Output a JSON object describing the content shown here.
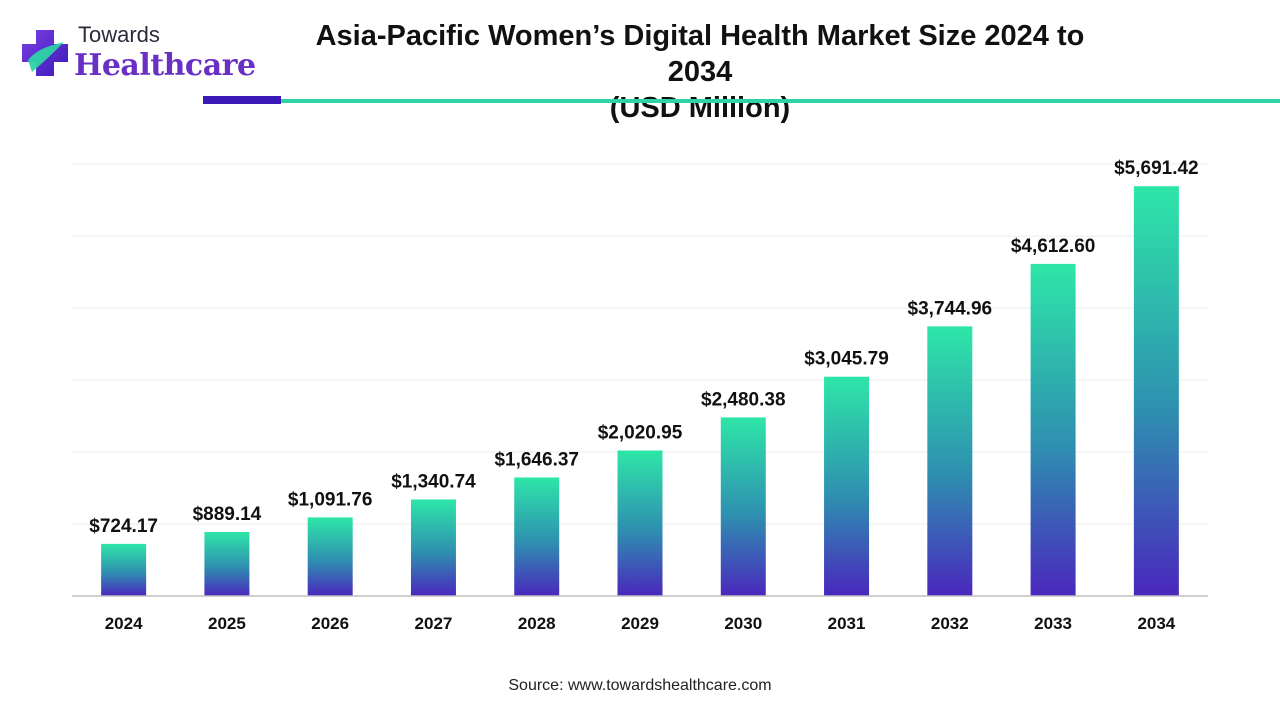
{
  "brand": {
    "line1": "Towards",
    "line2": "Healthcare"
  },
  "title_line1": "Asia-Pacific Women’s Digital Health Market Size 2024 to 2034",
  "title_line2": "(USD Million)",
  "source": "Source: www.towardshealthcare.com",
  "colors": {
    "bar_top": "#2ee6a8",
    "bar_mid": "#2e8fb0",
    "bar_bottom": "#4a27bd",
    "rule_dark": "#3a1bb7",
    "rule_teal": "#2ed3a6",
    "logo_purple": "#6a2fc4"
  },
  "chart_data": {
    "type": "bar",
    "categories": [
      "2024",
      "2025",
      "2026",
      "2027",
      "2028",
      "2029",
      "2030",
      "2031",
      "2032",
      "2033",
      "2034"
    ],
    "values": [
      724.17,
      889.14,
      1091.76,
      1340.74,
      1646.37,
      2020.95,
      2480.38,
      3045.79,
      3744.96,
      4612.6,
      5691.42
    ],
    "labels": [
      "$724.17",
      "$889.14",
      "$1,091.76",
      "$1,340.74",
      "$1,646.37",
      "$2,020.95",
      "$2,480.38",
      "$3,045.79",
      "$3,744.96",
      "$4,612.60",
      "$5,691.42"
    ],
    "title": "Asia-Pacific Women’s Digital Health Market Size 2024 to 2034 (USD Million)",
    "xlabel": "",
    "ylabel": "",
    "ylim": [
      0,
      6000
    ],
    "grid": true,
    "legend": "none"
  }
}
